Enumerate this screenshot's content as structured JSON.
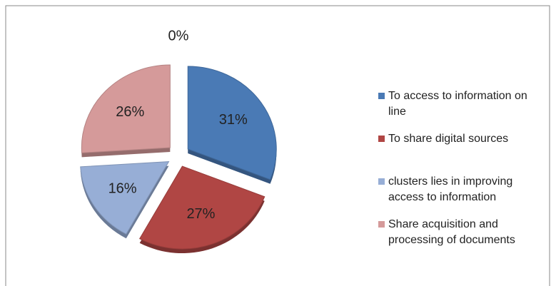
{
  "chart_data": {
    "type": "pie",
    "categories": [
      "To access to information on line",
      "To share digital sources",
      "clusters lies in improving access to information",
      "Share acquisition and processing of documents",
      null
    ],
    "values": [
      31,
      27,
      16,
      26,
      0
    ],
    "value_labels": [
      "31%",
      "27%",
      "16%",
      "26%",
      "0%"
    ],
    "colors": [
      "#4a7ab5",
      "#b04644",
      "#97aed6",
      "#d59a9a",
      "#7f9f4f"
    ],
    "legend": "right"
  }
}
